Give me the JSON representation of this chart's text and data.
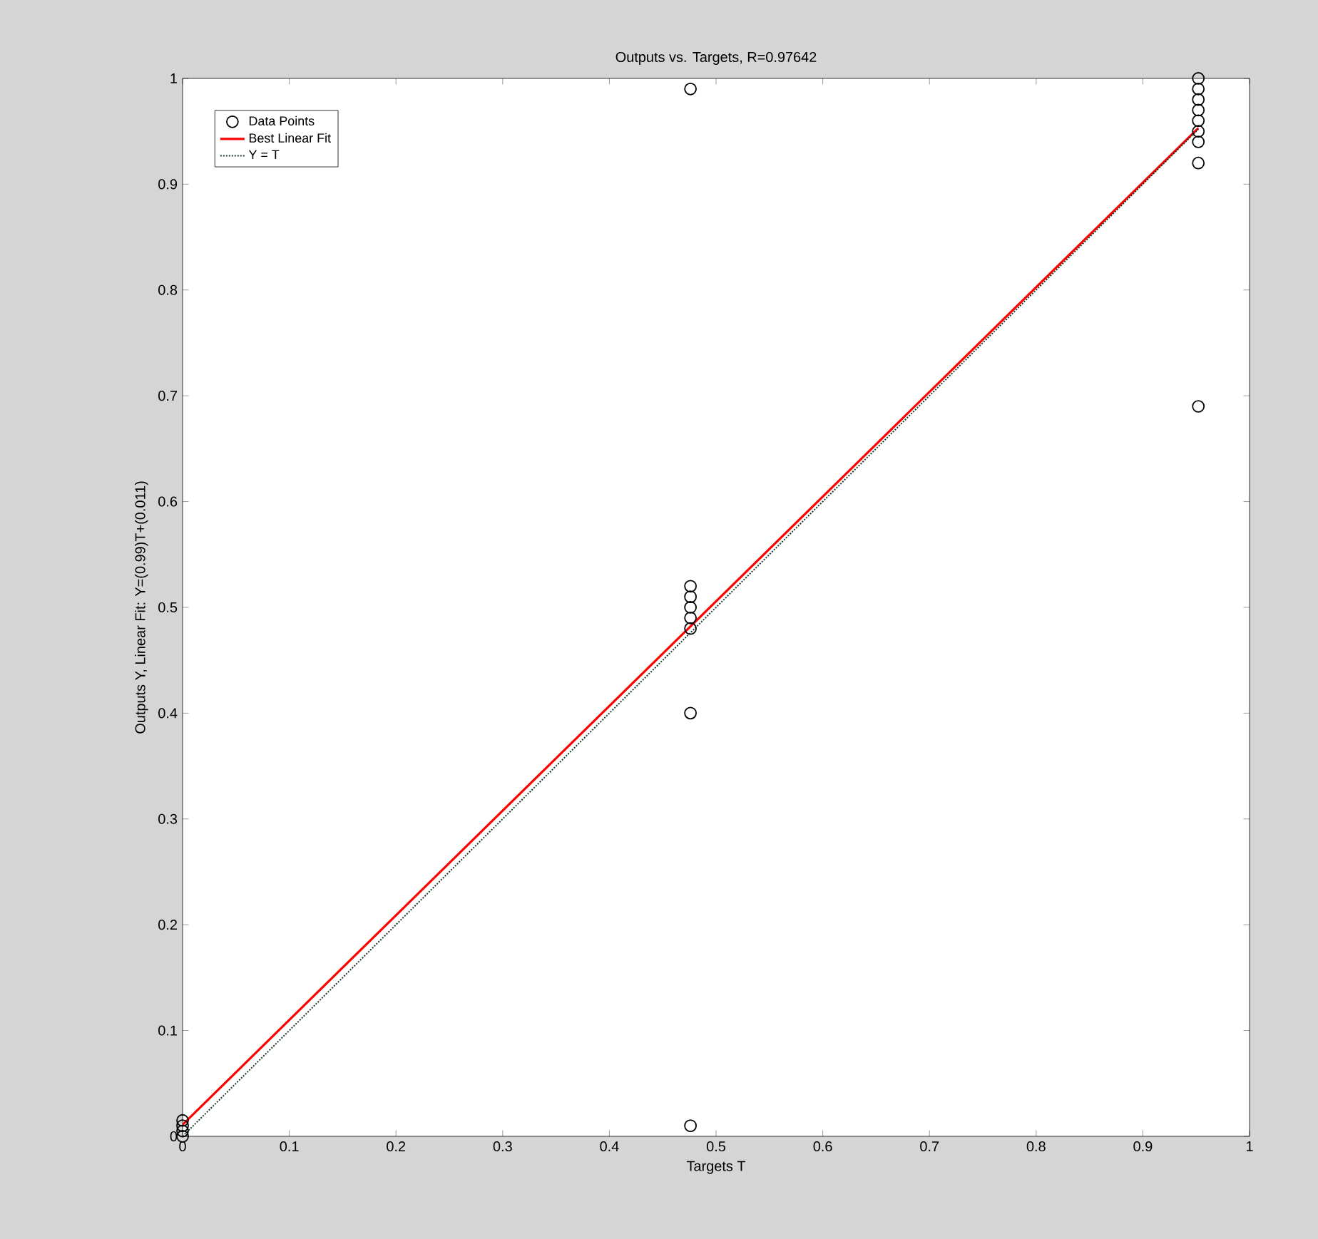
{
  "chart_data": {
    "type": "scatter",
    "title": "Outputs vs. Targets, R=0.97642",
    "xlabel": "Targets T",
    "ylabel": "Outputs Y, Linear Fit: Y=(0.99)T+(0.011)",
    "xlim": [
      0,
      1
    ],
    "ylim": [
      0,
      1
    ],
    "xticks": [
      0,
      0.1,
      0.2,
      0.3,
      0.4,
      0.5,
      0.6,
      0.7,
      0.8,
      0.9,
      1
    ],
    "yticks": [
      0,
      0.1,
      0.2,
      0.3,
      0.4,
      0.5,
      0.6,
      0.7,
      0.8,
      0.9,
      1
    ],
    "legend": "top left",
    "grid": false,
    "series": [
      {
        "name": "Data Points",
        "marker": "circle",
        "color": "#000000",
        "x": [
          0,
          0,
          0,
          0,
          0.476,
          0.476,
          0.476,
          0.476,
          0.476,
          0.476,
          0.476,
          0.476,
          0.952,
          0.952,
          0.952,
          0.952,
          0.952,
          0.952,
          0.952,
          0.952,
          0.952
        ],
        "values": [
          0,
          0.005,
          0.01,
          0.015,
          0.52,
          0.51,
          0.5,
          0.49,
          0.48,
          0.4,
          0.01,
          0.99,
          1,
          0.99,
          0.98,
          0.97,
          0.96,
          0.95,
          0.94,
          0.92,
          0.69
        ]
      },
      {
        "name": "Best Linear Fit",
        "type": "line",
        "marker": "none",
        "line_style": "solid",
        "color": "#ff0000",
        "x": [
          0,
          0.952
        ],
        "values": [
          0.011,
          0.953
        ]
      },
      {
        "name": "Y = T",
        "type": "line",
        "marker": "none",
        "line_style": "dotted",
        "color": "#1a3a2a",
        "x": [
          0,
          0.952
        ],
        "values": [
          0,
          0.952
        ]
      }
    ]
  }
}
